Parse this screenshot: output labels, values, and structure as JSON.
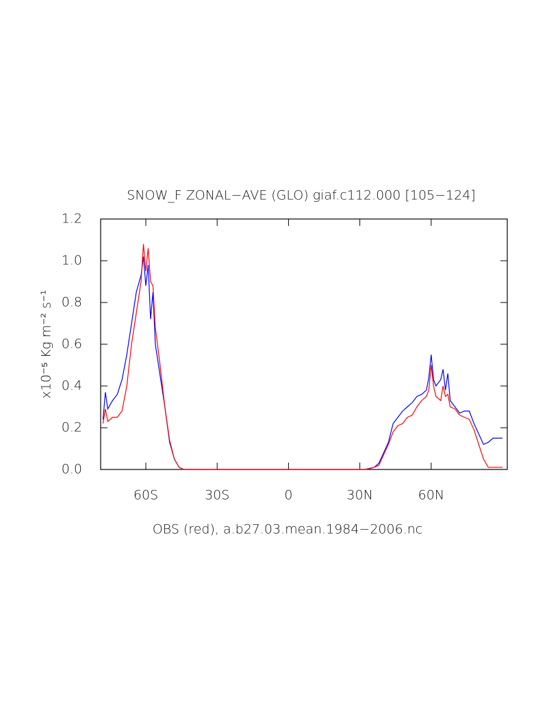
{
  "chart_data": {
    "type": "line",
    "title": "SNOW_F ZONAL−AVE (GLO) giaf.c112.000 [105−124]",
    "x_label": "OBS (red), a.b27.03.mean.1984−2006.nc",
    "y_label": "x10⁻⁵ Kg m⁻² s⁻¹",
    "x": [
      -78,
      -77,
      -76,
      -74,
      -72,
      -70,
      -68,
      -66,
      -64,
      -62,
      -61,
      -60,
      -59,
      -58,
      -57,
      -56,
      -54,
      -52,
      -50,
      -48,
      -46,
      -44,
      0,
      30,
      32,
      34,
      36,
      38,
      40,
      42,
      44,
      46,
      48,
      50,
      52,
      54,
      56,
      58,
      59,
      60,
      61,
      62,
      64,
      65,
      66,
      67,
      68,
      70,
      72,
      74,
      76,
      78,
      80,
      82,
      84,
      86,
      88,
      90
    ],
    "series": [
      {
        "color": "#0000ff",
        "values": [
          0.24,
          0.37,
          0.29,
          0.33,
          0.36,
          0.43,
          0.55,
          0.7,
          0.85,
          0.93,
          1.02,
          0.88,
          0.98,
          0.72,
          0.85,
          0.6,
          0.45,
          0.3,
          0.13,
          0.05,
          0.01,
          0,
          0,
          0,
          0,
          0.005,
          0.01,
          0.03,
          0.08,
          0.13,
          0.22,
          0.25,
          0.28,
          0.3,
          0.32,
          0.35,
          0.36,
          0.38,
          0.44,
          0.55,
          0.43,
          0.4,
          0.43,
          0.48,
          0.38,
          0.46,
          0.33,
          0.3,
          0.27,
          0.28,
          0.28,
          0.22,
          0.17,
          0.12,
          0.13,
          0.15,
          0.15,
          0.15
        ]
      },
      {
        "color": "#ff0000",
        "values": [
          0.22,
          0.29,
          0.23,
          0.25,
          0.25,
          0.28,
          0.4,
          0.6,
          0.75,
          0.9,
          1.08,
          0.95,
          1.06,
          0.9,
          0.88,
          0.68,
          0.5,
          0.3,
          0.14,
          0.05,
          0.01,
          0,
          0,
          0,
          0,
          0.003,
          0.01,
          0.02,
          0.07,
          0.12,
          0.18,
          0.21,
          0.22,
          0.25,
          0.26,
          0.3,
          0.33,
          0.35,
          0.38,
          0.5,
          0.4,
          0.35,
          0.33,
          0.4,
          0.35,
          0.36,
          0.3,
          0.29,
          0.26,
          0.25,
          0.24,
          0.19,
          0.12,
          0.05,
          0.01,
          0.01,
          0.01,
          0.01
        ]
      }
    ],
    "xlim": [
      -79,
      92
    ],
    "xticks": [
      {
        "value": -60,
        "label": "60S"
      },
      {
        "value": -30,
        "label": "30S"
      },
      0,
      {
        "value": 30,
        "label": "30N"
      },
      {
        "value": 60,
        "label": "60N"
      }
    ],
    "ylim": [
      0,
      1.2
    ],
    "yticks": [
      {
        "value": 0,
        "label": "0.0"
      },
      0.2,
      0.4,
      0.6,
      0.8,
      {
        "value": 1,
        "label": "1.0"
      },
      1.2
    ]
  }
}
